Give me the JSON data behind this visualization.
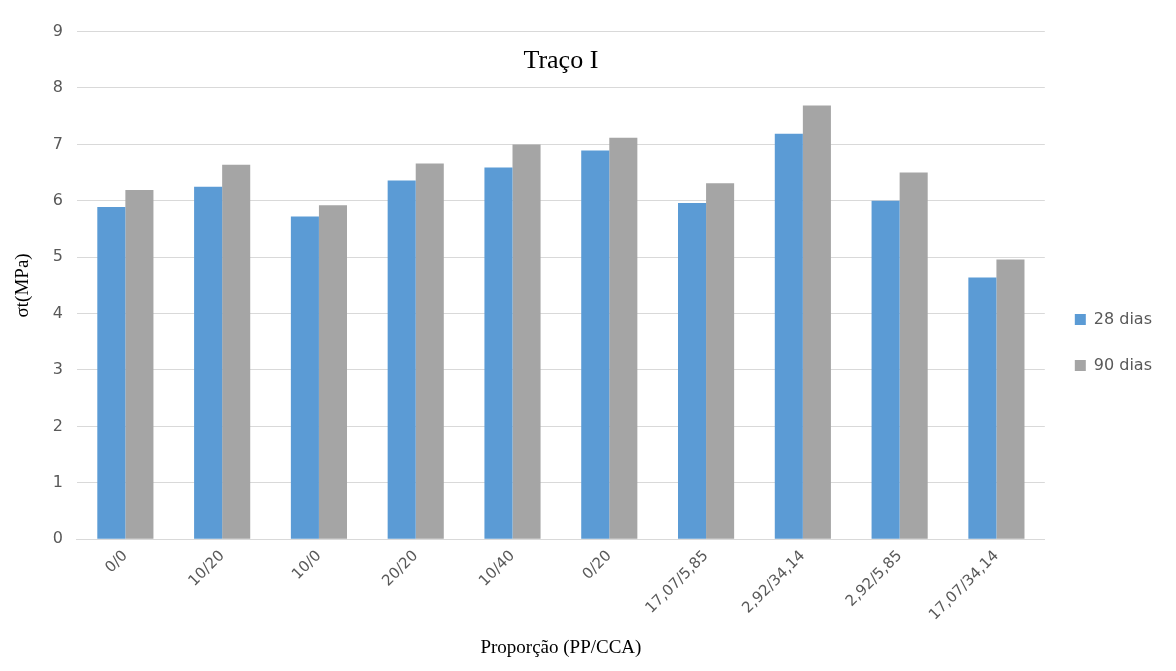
{
  "chart_data": {
    "type": "bar",
    "title": "Traço I",
    "xlabel": "Proporção (PP/CCA)",
    "ylabel": "σt(MPa)",
    "categories": [
      "0/0",
      "10/20",
      "10/0",
      "20/20",
      "10/40",
      "0/20",
      "17,07/5,85",
      "2,92/34,14",
      "2,92/5,85",
      "17,07/34,14"
    ],
    "series": [
      {
        "name": "28 dias",
        "color": "#5b9bd5",
        "values": [
          5.89,
          6.25,
          5.72,
          6.36,
          6.59,
          6.89,
          5.96,
          7.19,
          6.0,
          4.64
        ]
      },
      {
        "name": "90 dias",
        "color": "#a5a5a5",
        "values": [
          6.19,
          6.64,
          5.92,
          6.66,
          7.0,
          7.12,
          6.31,
          7.69,
          6.5,
          4.96
        ]
      }
    ],
    "ylim": [
      0,
      9
    ],
    "yticks": [
      0,
      1,
      2,
      3,
      4,
      5,
      6,
      7,
      8,
      9
    ],
    "grid": "y",
    "legend": "right"
  }
}
